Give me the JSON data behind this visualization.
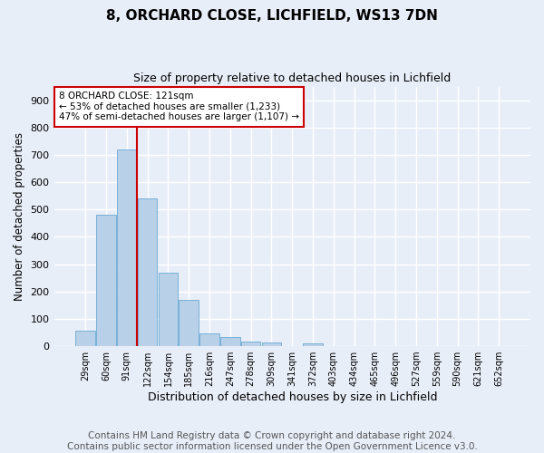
{
  "title1": "8, ORCHARD CLOSE, LICHFIELD, WS13 7DN",
  "title2": "Size of property relative to detached houses in Lichfield",
  "xlabel": "Distribution of detached houses by size in Lichfield",
  "ylabel": "Number of detached properties",
  "categories": [
    "29sqm",
    "60sqm",
    "91sqm",
    "122sqm",
    "154sqm",
    "185sqm",
    "216sqm",
    "247sqm",
    "278sqm",
    "309sqm",
    "341sqm",
    "372sqm",
    "403sqm",
    "434sqm",
    "465sqm",
    "496sqm",
    "527sqm",
    "559sqm",
    "590sqm",
    "621sqm",
    "652sqm"
  ],
  "values": [
    57,
    480,
    720,
    540,
    270,
    170,
    47,
    35,
    18,
    13,
    0,
    10,
    0,
    0,
    0,
    0,
    0,
    0,
    0,
    0,
    0
  ],
  "bar_color": "#b8d0e8",
  "bar_edge_color": "#6aaad4",
  "vline_color": "#cc0000",
  "annotation_text": "8 ORCHARD CLOSE: 121sqm\n← 53% of detached houses are smaller (1,233)\n47% of semi-detached houses are larger (1,107) →",
  "annotation_box_color": "#ffffff",
  "annotation_box_edge": "#cc0000",
  "ylim": [
    0,
    950
  ],
  "yticks": [
    0,
    100,
    200,
    300,
    400,
    500,
    600,
    700,
    800,
    900
  ],
  "footer": "Contains HM Land Registry data © Crown copyright and database right 2024.\nContains public sector information licensed under the Open Government Licence v3.0.",
  "bg_color": "#e8eef8",
  "plot_bg_color": "#e8eef8",
  "grid_color": "#ffffff",
  "title1_fontsize": 11,
  "title2_fontsize": 9,
  "xlabel_fontsize": 9,
  "ylabel_fontsize": 8.5,
  "footer_fontsize": 7.5,
  "tick_fontsize": 8
}
